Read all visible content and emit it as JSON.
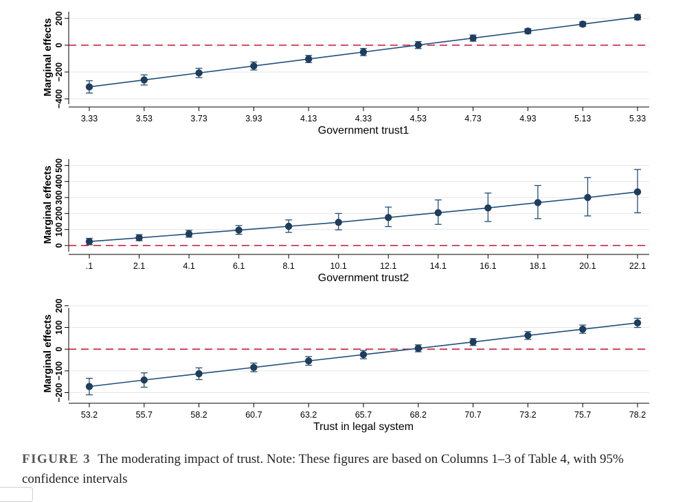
{
  "figure": {
    "label": "FIGURE 3",
    "caption": "The moderating impact of trust.  Note: These figures are based on Columns 1–3 of Table 4, with 95% confidence intervals"
  },
  "colors": {
    "line": "#1f4e79",
    "marker": "#1f3d5c",
    "reference": "#c8354f",
    "grid": "#e6e6e6"
  },
  "chart_data": [
    {
      "type": "line",
      "xlabel": "Government trust1",
      "ylabel": "Marginal effects",
      "x": [
        3.33,
        3.53,
        3.73,
        3.93,
        4.13,
        4.33,
        4.53,
        4.73,
        4.93,
        5.13,
        5.33
      ],
      "x_tick_labels": [
        "3.33",
        "3.53",
        "3.73",
        "3.93",
        "4.13",
        "4.33",
        "4.53",
        "4.73",
        "4.93",
        "5.13",
        "5.33"
      ],
      "y": [
        -311,
        -259,
        -207,
        -155,
        -103,
        -51,
        1,
        53,
        105,
        157,
        209
      ],
      "ci_low": [
        -357,
        -297,
        -242,
        -185,
        -130,
        -78,
        -25,
        30,
        87,
        140,
        190
      ],
      "ci_high": [
        -265,
        -221,
        -172,
        -125,
        -76,
        -24,
        27,
        76,
        123,
        174,
        228
      ],
      "y_ticks": [
        -400,
        -200,
        0,
        200
      ],
      "y_tick_labels": [
        "−400",
        "−200",
        "0",
        "200"
      ],
      "ylim": [
        -430,
        250
      ],
      "reference_line": 0,
      "grid": true
    },
    {
      "type": "line",
      "xlabel": "Government trust2",
      "ylabel": "Marginal effects",
      "x": [
        0.1,
        2.1,
        4.1,
        6.1,
        8.1,
        10.1,
        12.1,
        14.1,
        16.1,
        18.1,
        20.1,
        22.1
      ],
      "x_tick_labels": [
        ".1",
        "2.1",
        "4.1",
        "6.1",
        "8.1",
        "10.1",
        "12.1",
        "14.1",
        "16.1",
        "18.1",
        "20.1",
        "22.1"
      ],
      "y": [
        25,
        48,
        72,
        96,
        120,
        145,
        175,
        205,
        235,
        268,
        300,
        335
      ],
      "ci_low": [
        5,
        30,
        52,
        70,
        82,
        98,
        118,
        132,
        150,
        168,
        185,
        205
      ],
      "ci_high": [
        45,
        68,
        95,
        125,
        160,
        200,
        240,
        285,
        328,
        375,
        425,
        475
      ],
      "y_ticks": [
        0,
        100,
        200,
        300,
        400,
        500
      ],
      "y_tick_labels": [
        "0",
        "100",
        "200",
        "300",
        "400",
        "500"
      ],
      "ylim": [
        -30,
        540
      ],
      "reference_line": 0,
      "grid": true
    },
    {
      "type": "line",
      "xlabel": "Trust in legal system",
      "ylabel": "Marginal effects",
      "x": [
        53.2,
        55.7,
        58.2,
        60.7,
        63.2,
        65.7,
        68.2,
        70.7,
        73.2,
        75.7,
        78.2
      ],
      "x_tick_labels": [
        "53.2",
        "55.7",
        "58.2",
        "60.7",
        "63.2",
        "65.7",
        "68.2",
        "70.7",
        "73.2",
        "75.7",
        "78.2"
      ],
      "y": [
        -172,
        -142,
        -113,
        -84,
        -54,
        -25,
        4,
        33,
        63,
        92,
        121
      ],
      "ci_low": [
        -210,
        -175,
        -140,
        -104,
        -74,
        -44,
        -12,
        17,
        45,
        73,
        100
      ],
      "ci_high": [
        -134,
        -109,
        -86,
        -64,
        -34,
        -6,
        20,
        49,
        81,
        111,
        142
      ],
      "y_ticks": [
        -200,
        -100,
        0,
        100,
        200
      ],
      "y_tick_labels": [
        "−200",
        "−100",
        "0",
        "100",
        "200"
      ],
      "ylim": [
        -230,
        190
      ],
      "reference_line": 0,
      "grid": true
    }
  ]
}
